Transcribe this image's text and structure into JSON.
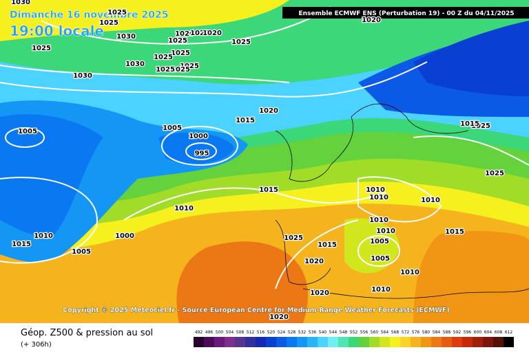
{
  "header": {
    "date": "Dimanche 16 novembre 2025",
    "time": "19:00 locale",
    "run": "Ensemble ECMWF ENS  (Perturbation 19)  -  00 Z du 04/11/2025"
  },
  "copyright": "Copyright © 2025 Meteociel.fr - Source European Centre for Medium-Range Weather Forecasts (ECMWF)",
  "footer": {
    "title": "Géop. Z500 & pression au sol",
    "lead": "(+ 306h)"
  },
  "legend": {
    "levels": [
      492,
      496,
      500,
      504,
      508,
      512,
      516,
      520,
      524,
      528,
      532,
      536,
      540,
      544,
      548,
      552,
      556,
      560,
      564,
      568,
      572,
      576,
      580,
      584,
      588,
      592,
      596,
      600,
      604,
      608,
      612
    ],
    "colors": [
      "#2a0030",
      "#4b0b5a",
      "#6a1a7a",
      "#7e2f8e",
      "#55358f",
      "#30309a",
      "#1428b4",
      "#0a40d2",
      "#0a5ae6",
      "#0a78f0",
      "#1496f5",
      "#28b4fa",
      "#4bd2ff",
      "#6ef0f0",
      "#50e6b4",
      "#3cd778",
      "#64d23c",
      "#a0dc28",
      "#d2e61e",
      "#f5f01e",
      "#fad228",
      "#f5b41e",
      "#f09614",
      "#eb7814",
      "#e65a14",
      "#dc3c0f",
      "#c8280a",
      "#a01e0a",
      "#7d1408",
      "#551005",
      "#000000"
    ]
  },
  "isobar_labels": [
    "1030",
    "1025",
    "1025",
    "1030",
    "1020",
    "1020",
    "1020",
    "1025",
    "1025",
    "1025",
    "1025",
    "1025",
    "1025",
    "1030",
    "1030",
    "1025",
    "1020",
    "1015",
    "1005",
    "1005",
    "1000",
    "995",
    "1015",
    "1010",
    "1010",
    "1000",
    "1015",
    "1005",
    "1010",
    "1010",
    "1010",
    "1010",
    "1010",
    "1005",
    "1005",
    "1025",
    "1015",
    "1020",
    "1015",
    "1010",
    "1010",
    "1020",
    "1020",
    "1025",
    "1025",
    "1020",
    "1025",
    "1015"
  ]
}
